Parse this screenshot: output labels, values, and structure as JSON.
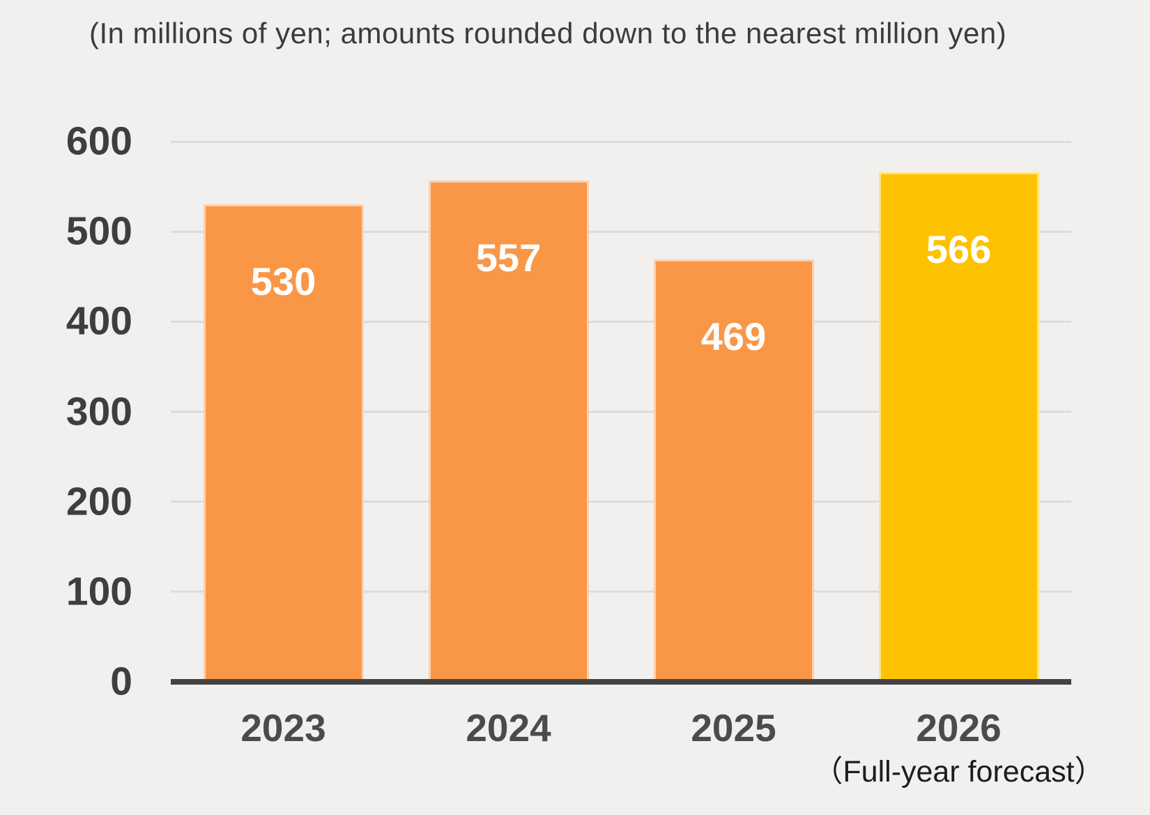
{
  "chart_data": {
    "type": "bar",
    "title": "(In millions of yen; amounts rounded down to the nearest million yen)",
    "categories": [
      "2023",
      "2024",
      "2025",
      "2026"
    ],
    "category_sublabels": [
      "",
      "",
      "",
      "（Full-year forecast）"
    ],
    "values": [
      530,
      557,
      469,
      566
    ],
    "bar_colors": [
      "#FA9747",
      "#FA9747",
      "#FA9747",
      "#FDC200"
    ],
    "value_labels": [
      "530",
      "557",
      "469",
      "566"
    ],
    "xlabel": "",
    "ylabel": "",
    "ylim": [
      0,
      600
    ],
    "yticks": [
      0,
      100,
      200,
      300,
      400,
      500,
      600
    ],
    "grid": true,
    "legend": false
  },
  "colors": {
    "background": "#F1F0EF",
    "bar_default": "#FA9747",
    "bar_forecast": "#FDC200",
    "axis_line": "#424242",
    "gridline": "#DDDCDB",
    "tick_label": "#3E3E3E",
    "category_label": "#4B4B4B",
    "sublabel_text": "#1C1C1C",
    "note_text": "#3C3C3C",
    "value_label_text": "#FFFFFF"
  }
}
